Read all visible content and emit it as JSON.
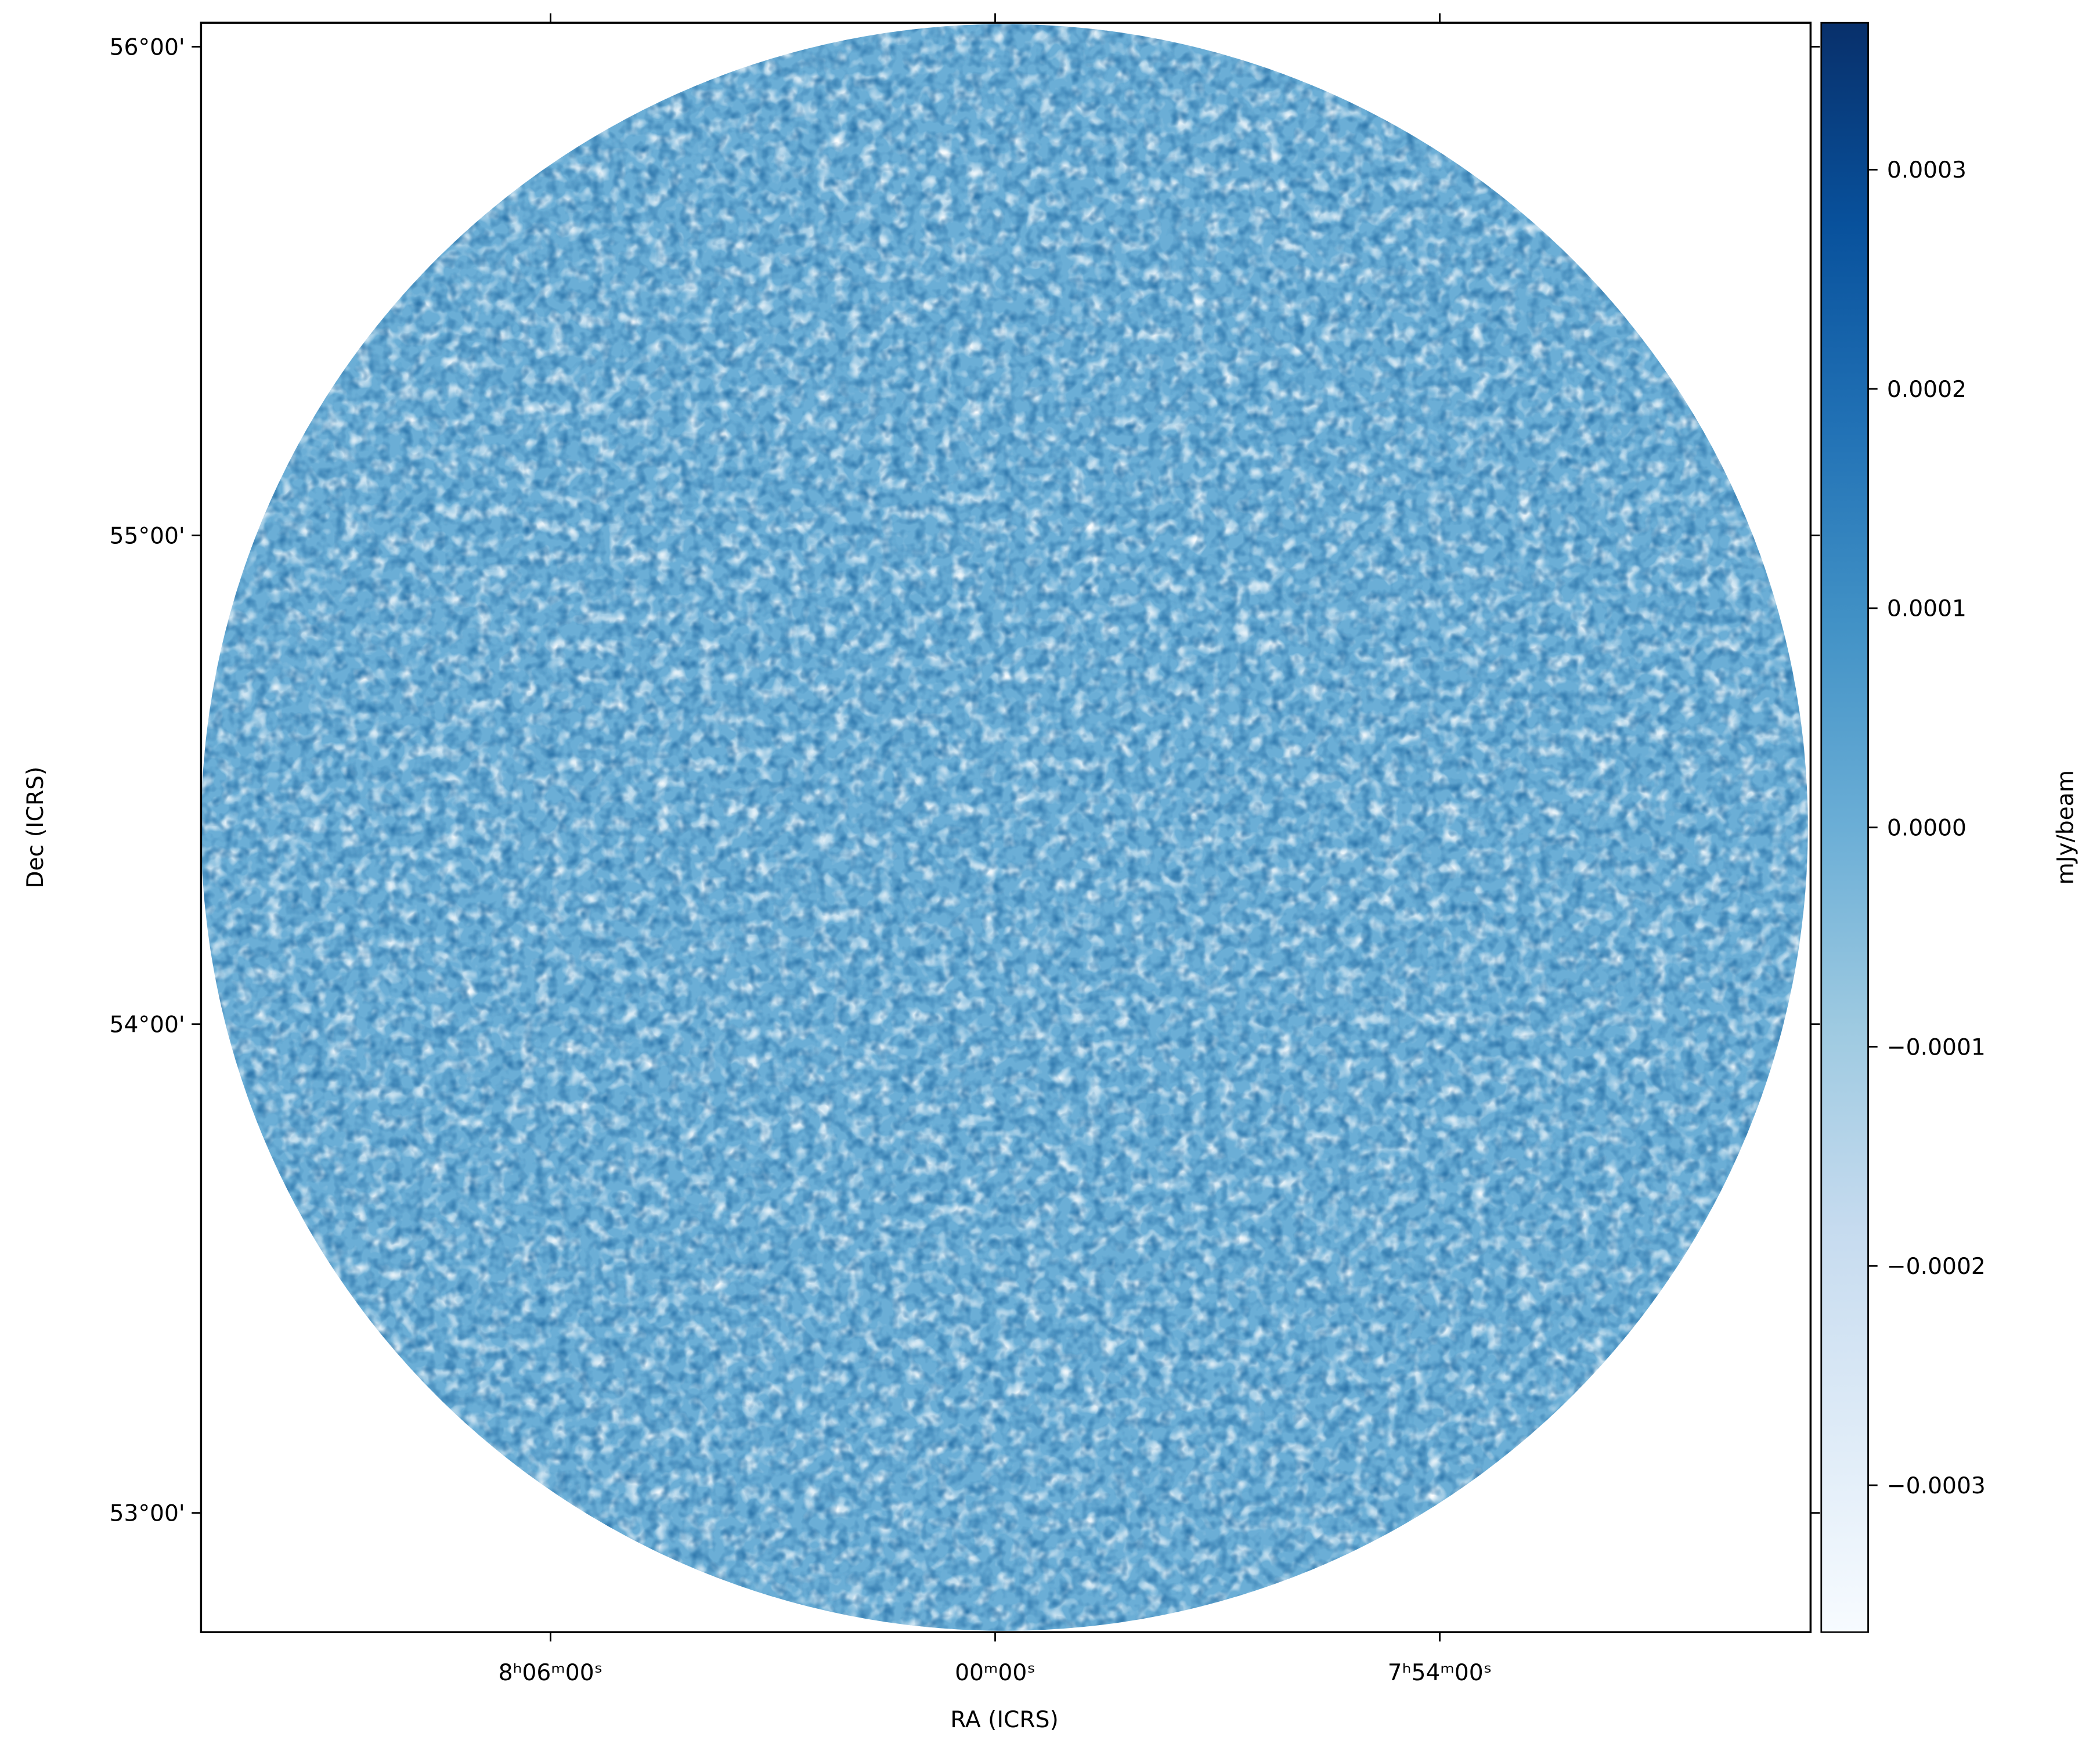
{
  "chart_data": {
    "type": "image",
    "xlabel": "RA (ICRS)",
    "ylabel": "Dec (ICRS)",
    "colorbar_label": "mJy/beam",
    "xlim": [
      8.1786,
      7.8166
    ],
    "xticks": [
      {
        "value": 8.1,
        "label": "8ʰ06ᵐ00ˢ"
      },
      {
        "value": 8.0,
        "label": "00ᵐ00ˢ"
      },
      {
        "value": 7.9,
        "label": "7ʰ54ᵐ00ˢ"
      }
    ],
    "ylim": [
      52.756,
      56.049
    ],
    "yticks": [
      {
        "value": 53,
        "label": "53°00'"
      },
      {
        "value": 54,
        "label": "54°00'"
      },
      {
        "value": 55,
        "label": "55°00'"
      },
      {
        "value": 56,
        "label": "56°00'"
      }
    ],
    "clim": [
      -0.000367,
      0.000367
    ],
    "cticks": [
      {
        "value": -0.0003,
        "label": "−0.0003"
      },
      {
        "value": -0.0002,
        "label": "−0.0002"
      },
      {
        "value": -0.0001,
        "label": "−0.0001"
      },
      {
        "value": 0,
        "label": "0.0000"
      },
      {
        "value": 0.0001,
        "label": "0.0001"
      },
      {
        "value": 0.0002,
        "label": "0.0002"
      },
      {
        "value": 0.0003,
        "label": "0.0003"
      }
    ],
    "colormap": [
      "#f7fbff",
      "#deebf7",
      "#c6dbef",
      "#9ecae1",
      "#6baed6",
      "#4292c6",
      "#2171b5",
      "#08519c",
      "#08306b"
    ]
  }
}
